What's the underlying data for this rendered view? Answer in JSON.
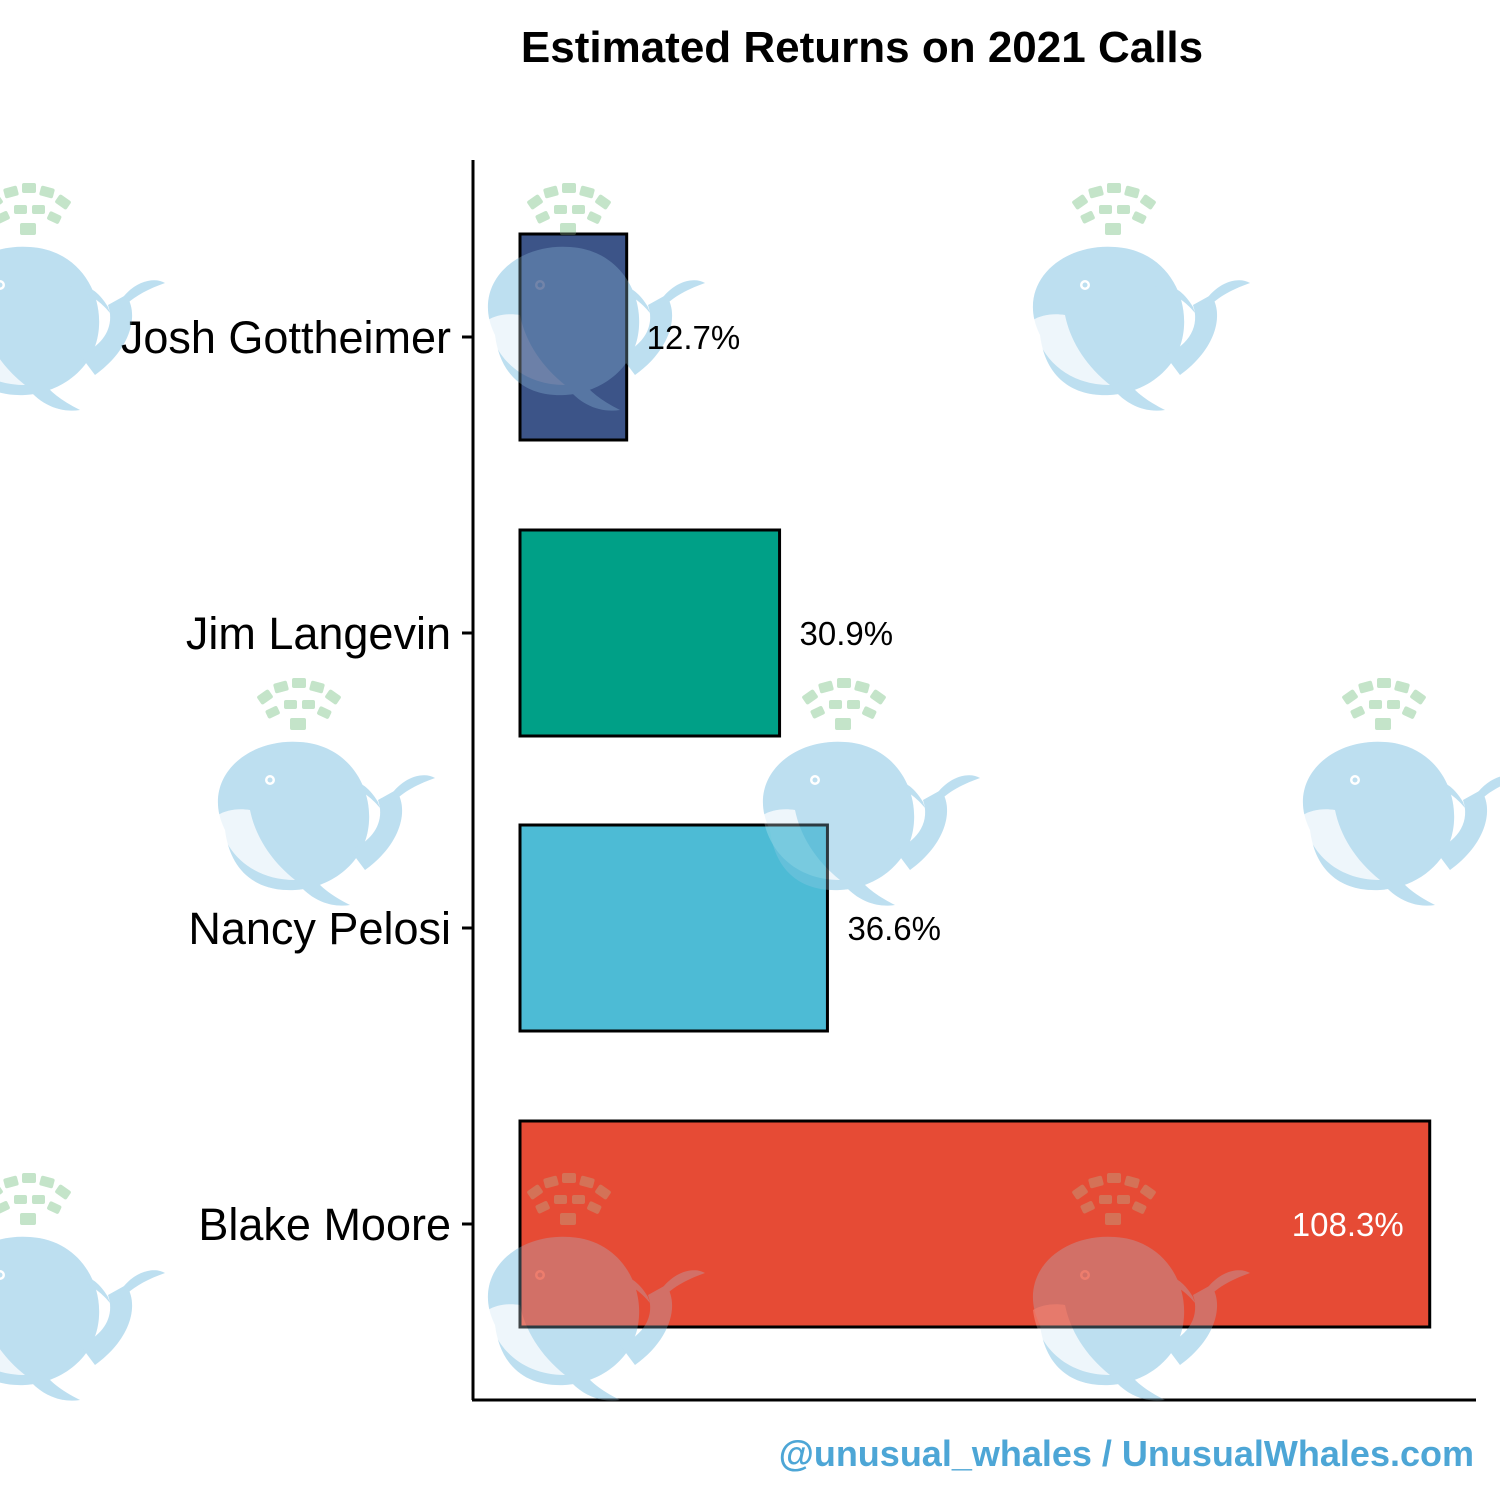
{
  "chart_data": {
    "type": "bar",
    "orientation": "horizontal",
    "title": "Estimated Returns on 2021 Calls",
    "xlabel": "",
    "ylabel": "",
    "categories": [
      "Josh Gottheimer",
      "Jim Langevin",
      "Nancy Pelosi",
      "Blake Moore"
    ],
    "values": [
      12.7,
      30.9,
      36.6,
      108.3
    ],
    "value_labels": [
      "12.7%",
      "30.9%",
      "36.6%",
      "108.3%"
    ],
    "unit": "%",
    "xlim": [
      0,
      114
    ],
    "grid": false,
    "legend": "none",
    "bar_colors": [
      "#3C5488",
      "#00A087",
      "#4DBBD5",
      "#E64B35"
    ],
    "value_label_colors": [
      "#000000",
      "#000000",
      "#000000",
      "#ffffff"
    ]
  },
  "credit": "@unusual_whales / UnusualWhales.com",
  "colors": {
    "credit": "#4DA6D6",
    "axis": "#000000",
    "bar_outline": "#000000",
    "watermark_body": "#9FD0EA",
    "watermark_spray": "#A8D8B0"
  },
  "watermark": {
    "icon": "whale-icon"
  }
}
